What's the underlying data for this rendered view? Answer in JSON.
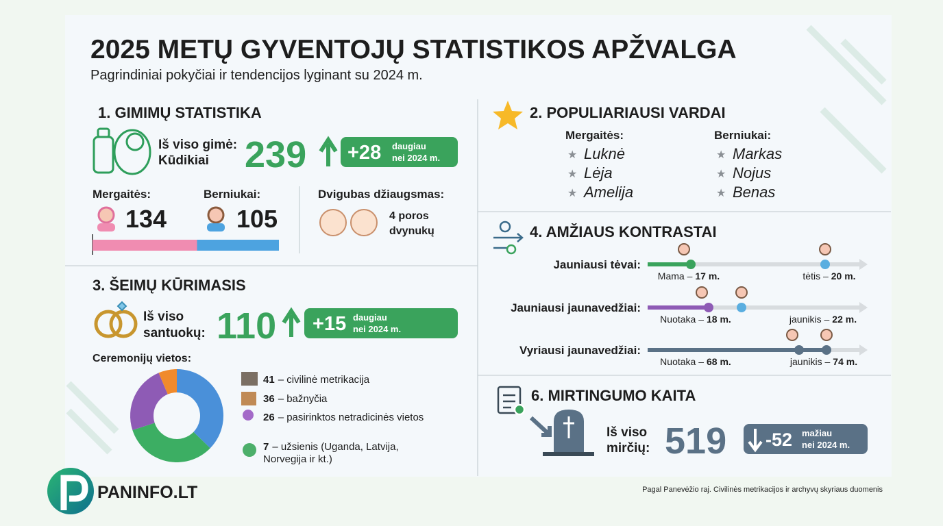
{
  "header": {
    "title": "2025 METŲ GYVENTOJŲ  STATISTIKOS APŽVALGA",
    "subtitle": "Pagrindiniai pokyčiai ir tendencijos lyginant su 2024 m."
  },
  "births": {
    "heading": "1. GIMIMŲ STATISTIKA",
    "total_label_1": "Iš viso gimė:",
    "total_label_2": "Kūdikiai",
    "total": 239,
    "change": "+28",
    "change_note_1": "daugiau",
    "change_note_2": "nei 2024 m.",
    "girls_label": "Mergaitės:",
    "girls": 134,
    "boys_label": "Berniukai:",
    "boys": 105,
    "girls_color": "#f08cb1",
    "boys_color": "#4da3e0",
    "twins_label": "Dvigubas džiaugsmas:",
    "twins_text_1": "4 poros",
    "twins_text_2": "dvynukų"
  },
  "marriages": {
    "heading": "3. ŠEIMŲ KŪRIMASIS",
    "total_label_1": "Iš viso",
    "total_label_2": "santuokų:",
    "total": 110,
    "change": "+15",
    "change_note_1": "daugiau",
    "change_note_2": "nei 2024 m.",
    "ceremonies_label": "Ceremonijų vietos:",
    "items": [
      {
        "count": 41,
        "text": [
          "– civilinė metrikacija"
        ],
        "color": "#4a90d9"
      },
      {
        "count": 36,
        "text": [
          "– bažnyčia"
        ],
        "color": "#3cae63"
      },
      {
        "count": 26,
        "text": [
          "– pasirinktos netradicinės vietos"
        ],
        "color": "#8e5bb5"
      },
      {
        "count": 7,
        "text": [
          "– užsienis (Uganda, Latvija,",
          "Norvegija ir kt.)"
        ],
        "color": "#f08a2c"
      }
    ]
  },
  "names": {
    "heading": "2. POPULIARIAUSI VARDAI",
    "girls_label": "Mergaitės:",
    "boys_label": "Berniukai:",
    "girls": [
      "Luknė",
      "Lėja",
      "Amelija"
    ],
    "boys": [
      "Markas",
      "Nojus",
      "Benas"
    ]
  },
  "ages": {
    "heading": "4. AMŽIAUS KONTRASTAI",
    "rows": [
      {
        "label": "Jauniausi tėvai:",
        "left": {
          "who": "Mama –",
          "age": "17 m."
        },
        "right": {
          "who": "tėtis –",
          "age": "20 m."
        }
      },
      {
        "label": "Jauniausi jaunavedžiai:",
        "left": {
          "who": "Nuotaka –",
          "age": "18 m."
        },
        "right": {
          "who": "jaunikis –",
          "age": "22 m."
        }
      },
      {
        "label": "Vyriausi jaunavedžiai:",
        "left": {
          "who": "Nuotaka –",
          "age": "68 m."
        },
        "right": {
          "who": "jaunikis –",
          "age": "74 m."
        }
      }
    ]
  },
  "deaths": {
    "heading": "6. MIRTINGUMO KAITA",
    "total_label_1": "Iš viso",
    "total_label_2": "mirčių:",
    "total": 519,
    "change": "-52",
    "change_note_1": "mažiau",
    "change_note_2": "nei 2024 m."
  },
  "footer": {
    "logo": "PANINFO.LT",
    "source": "Pagal Panevėžio raj. Civilinės metrikacijos ir archyvų skyriaus duomenis"
  }
}
